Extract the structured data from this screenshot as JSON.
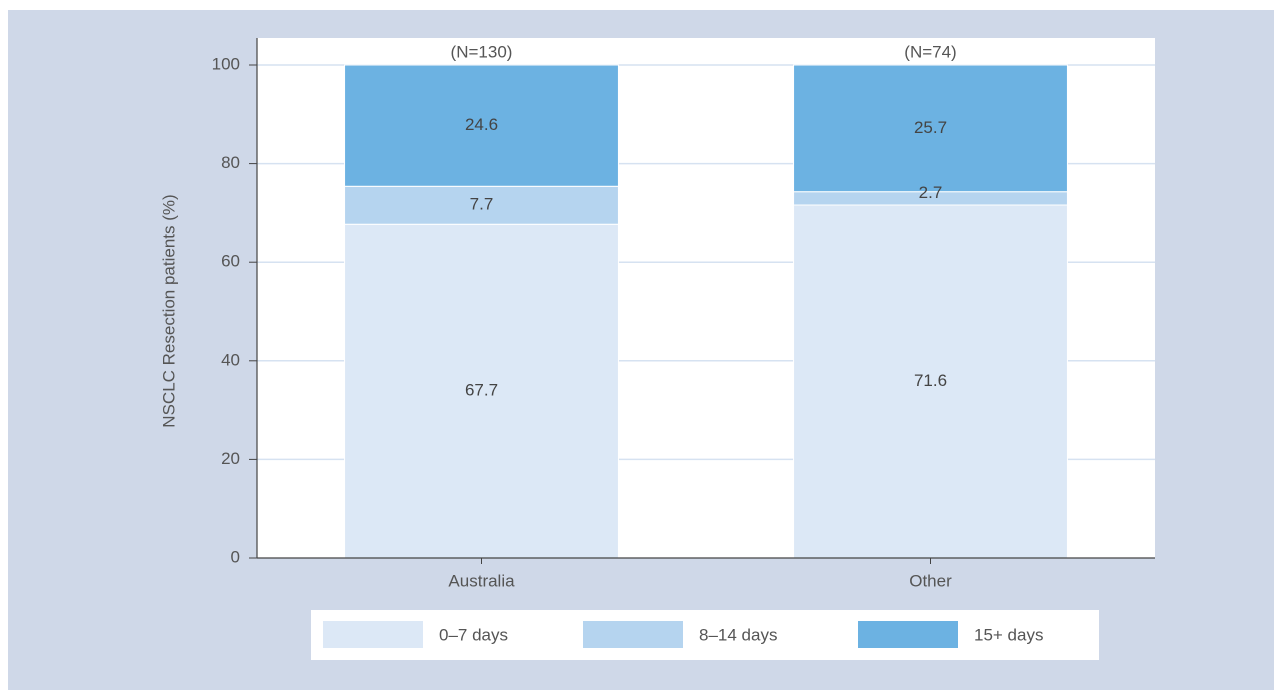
{
  "chart_data": {
    "type": "stacked_bar",
    "y_label": "NSCLC Resection patients (%)",
    "categories": [
      "Australia",
      "Other"
    ],
    "category_annotations": [
      "(N=130)",
      "(N=74)"
    ],
    "series": [
      {
        "name": "0–7 days",
        "color": "#dce8f6",
        "values": [
          67.7,
          71.6
        ]
      },
      {
        "name": "8–14 days",
        "color": "#b5d4ef",
        "values": [
          7.7,
          2.7
        ]
      },
      {
        "name": "15+ days",
        "color": "#6cb2e2",
        "values": [
          24.6,
          25.7
        ]
      }
    ],
    "ylim": [
      0,
      100
    ],
    "yticks": [
      0,
      20,
      40,
      60,
      80,
      100
    ],
    "grid": true,
    "legend": "bottom"
  }
}
